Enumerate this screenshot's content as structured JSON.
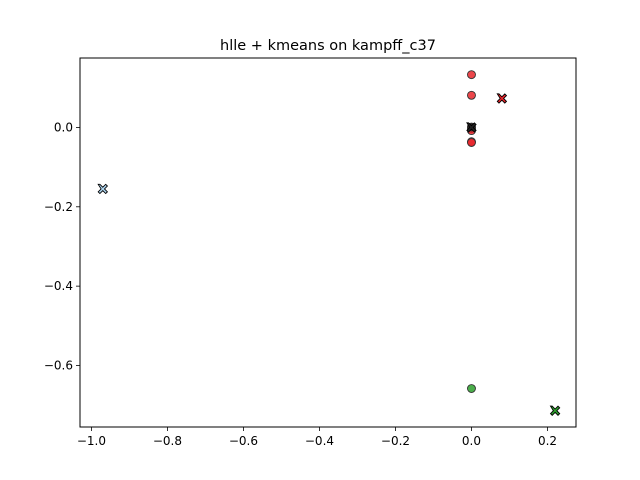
{
  "chart_data": {
    "type": "scatter",
    "title": "hlle + kmeans on kampff_c37",
    "xlabel": "",
    "ylabel": "",
    "xlim": [
      -1.03,
      0.275
    ],
    "ylim": [
      -0.755,
      0.175
    ],
    "xticks": [
      -1.0,
      -0.8,
      -0.6,
      -0.4,
      -0.2,
      0.0,
      0.2
    ],
    "xtick_labels": [
      "−1.0",
      "−0.8",
      "−0.6",
      "−0.4",
      "−0.2",
      "0.0",
      "0.2"
    ],
    "yticks": [
      0.0,
      -0.2,
      -0.4,
      -0.6
    ],
    "ytick_labels": [
      "0.0",
      "−0.2",
      "−0.4",
      "−0.6"
    ],
    "grid": false,
    "legend": "none",
    "series": [
      {
        "color": "#e8262b",
        "marker": "circle",
        "points": [
          {
            "x": 0.0,
            "y": 0.133
          },
          {
            "x": 0.0,
            "y": 0.081
          },
          {
            "x": 0.0,
            "y": 0.0
          },
          {
            "x": 0.0,
            "y": -0.003
          },
          {
            "x": 0.0,
            "y": -0.008
          },
          {
            "x": 0.0,
            "y": -0.036
          },
          {
            "x": 0.0,
            "y": -0.038
          }
        ]
      },
      {
        "color": "#2ca02c",
        "marker": "circle",
        "points": [
          {
            "x": 0.0,
            "y": -0.658
          }
        ]
      },
      {
        "color": "#222222",
        "marker": "circle",
        "points": [
          {
            "x": 0.0,
            "y": 0.001
          }
        ]
      }
    ],
    "centroids": [
      {
        "x": 0.08,
        "y": 0.073,
        "color": "#e8262b"
      },
      {
        "x": 0.0,
        "y": 0.0,
        "color": "#222222"
      },
      {
        "x": -0.97,
        "y": -0.155,
        "color": "#aed6f1"
      },
      {
        "x": 0.22,
        "y": -0.714,
        "color": "#2ca02c"
      }
    ]
  }
}
